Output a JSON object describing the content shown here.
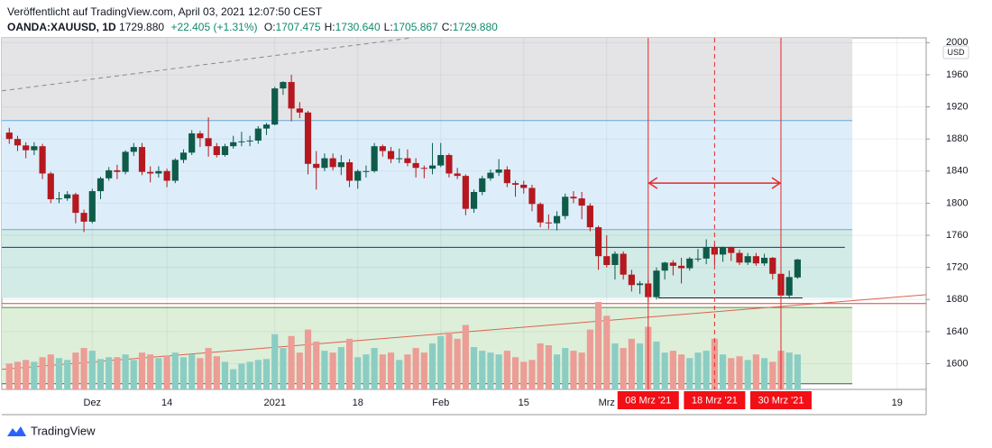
{
  "header": {
    "published": "Veröffentlicht auf TradingView.com, April 03, 2021 12:07:50 CEST",
    "symbol": "OANDA:XAUUSD, 1D",
    "last": "1729.880",
    "change": "+22.405 (+1.31%)",
    "ohlc": [
      {
        "label": "O:",
        "value": "1707.475"
      },
      {
        "label": "H:",
        "value": "1730.640"
      },
      {
        "label": "L:",
        "value": "1705.867"
      },
      {
        "label": "C:",
        "value": "1729.880"
      }
    ]
  },
  "footer": {
    "brand": "TradingView"
  },
  "chart_data": {
    "type": "candlestick",
    "currency": "USD",
    "ylim": [
      1568,
      2006
    ],
    "xlim": [
      -0.9,
      110.5
    ],
    "yticks": [
      1600,
      1640,
      1680,
      1720,
      1760,
      1800,
      1840,
      1880,
      1920,
      1960,
      2000
    ],
    "xlabels": [
      {
        "index": 10,
        "label": "Dez"
      },
      {
        "index": 19,
        "label": "14"
      },
      {
        "index": 32,
        "label": "2021"
      },
      {
        "index": 42,
        "label": "18"
      },
      {
        "index": 52,
        "label": "Feb"
      },
      {
        "index": 62,
        "label": "15"
      },
      {
        "index": 72,
        "label": "Mrz"
      },
      {
        "index": 107,
        "label": "19"
      }
    ],
    "grid": true,
    "up_color": "#0f5b4a",
    "down_color": "#b5181e",
    "volume_up_color": "#8ccdc3",
    "volume_down_color": "#ec9d96",
    "candles": [
      [
        1888,
        1894,
        1874,
        1880
      ],
      [
        1880,
        1884,
        1865,
        1872
      ],
      [
        1872,
        1876,
        1856,
        1866
      ],
      [
        1866,
        1876,
        1860,
        1871
      ],
      [
        1871,
        1874,
        1830,
        1837
      ],
      [
        1837,
        1839,
        1800,
        1805
      ],
      [
        1805,
        1814,
        1800,
        1806
      ],
      [
        1806,
        1815,
        1803,
        1811
      ],
      [
        1811,
        1813,
        1775,
        1788
      ],
      [
        1788,
        1792,
        1764,
        1777
      ],
      [
        1777,
        1818,
        1775,
        1815
      ],
      [
        1815,
        1833,
        1805,
        1831
      ],
      [
        1831,
        1845,
        1828,
        1841
      ],
      [
        1841,
        1848,
        1830,
        1839
      ],
      [
        1839,
        1866,
        1836,
        1864
      ],
      [
        1864,
        1875,
        1859,
        1870
      ],
      [
        1870,
        1875,
        1835,
        1839
      ],
      [
        1839,
        1846,
        1826,
        1837
      ],
      [
        1837,
        1846,
        1832,
        1840
      ],
      [
        1840,
        1843,
        1820,
        1828
      ],
      [
        1828,
        1856,
        1825,
        1854
      ],
      [
        1854,
        1867,
        1850,
        1863
      ],
      [
        1863,
        1891,
        1860,
        1887
      ],
      [
        1887,
        1890,
        1870,
        1881
      ],
      [
        1881,
        1907,
        1858,
        1871
      ],
      [
        1871,
        1875,
        1857,
        1860
      ],
      [
        1860,
        1874,
        1858,
        1871
      ],
      [
        1871,
        1884,
        1868,
        1876
      ],
      [
        1876,
        1889,
        1871,
        1877
      ],
      [
        1877,
        1884,
        1871,
        1878
      ],
      [
        1878,
        1896,
        1874,
        1893
      ],
      [
        1893,
        1900,
        1885,
        1898
      ],
      [
        1898,
        1945,
        1897,
        1943
      ],
      [
        1943,
        1952,
        1935,
        1951
      ],
      [
        1951,
        1960,
        1902,
        1918
      ],
      [
        1918,
        1926,
        1906,
        1913
      ],
      [
        1913,
        1915,
        1836,
        1849
      ],
      [
        1849,
        1865,
        1817,
        1844
      ],
      [
        1844,
        1862,
        1840,
        1856
      ],
      [
        1856,
        1862,
        1841,
        1845
      ],
      [
        1845,
        1860,
        1835,
        1851
      ],
      [
        1851,
        1855,
        1820,
        1828
      ],
      [
        1828,
        1842,
        1818,
        1840
      ],
      [
        1840,
        1847,
        1832,
        1840
      ],
      [
        1840,
        1875,
        1838,
        1871
      ],
      [
        1871,
        1873,
        1858,
        1865
      ],
      [
        1865,
        1870,
        1850,
        1855
      ],
      [
        1855,
        1868,
        1850,
        1856
      ],
      [
        1856,
        1867,
        1846,
        1850
      ],
      [
        1850,
        1856,
        1832,
        1844
      ],
      [
        1844,
        1847,
        1831,
        1843
      ],
      [
        1843,
        1875,
        1836,
        1847
      ],
      [
        1847,
        1875,
        1845,
        1860
      ],
      [
        1860,
        1862,
        1832,
        1837
      ],
      [
        1837,
        1844,
        1830,
        1834
      ],
      [
        1834,
        1836,
        1785,
        1793
      ],
      [
        1793,
        1817,
        1788,
        1814
      ],
      [
        1814,
        1834,
        1810,
        1831
      ],
      [
        1831,
        1842,
        1828,
        1838
      ],
      [
        1838,
        1855,
        1834,
        1842
      ],
      [
        1842,
        1846,
        1820,
        1825
      ],
      [
        1825,
        1828,
        1808,
        1823
      ],
      [
        1823,
        1828,
        1812,
        1819
      ],
      [
        1819,
        1823,
        1790,
        1799
      ],
      [
        1799,
        1801,
        1770,
        1776
      ],
      [
        1776,
        1786,
        1768,
        1775
      ],
      [
        1775,
        1790,
        1766,
        1784
      ],
      [
        1784,
        1812,
        1780,
        1808
      ],
      [
        1808,
        1815,
        1800,
        1806
      ],
      [
        1806,
        1814,
        1780,
        1797
      ],
      [
        1797,
        1800,
        1765,
        1770
      ],
      [
        1770,
        1772,
        1717,
        1734
      ],
      [
        1734,
        1760,
        1720,
        1723
      ],
      [
        1723,
        1740,
        1705,
        1737
      ],
      [
        1737,
        1740,
        1705,
        1711
      ],
      [
        1711,
        1717,
        1690,
        1698
      ],
      [
        1698,
        1703,
        1687,
        1700
      ],
      [
        1700,
        1705,
        1677,
        1683
      ],
      [
        1683,
        1720,
        1680,
        1716
      ],
      [
        1716,
        1727,
        1705,
        1726
      ],
      [
        1726,
        1729,
        1710,
        1722
      ],
      [
        1722,
        1732,
        1700,
        1719
      ],
      [
        1719,
        1733,
        1716,
        1731
      ],
      [
        1731,
        1743,
        1727,
        1731
      ],
      [
        1731,
        1755,
        1724,
        1745
      ],
      [
        1745,
        1749,
        1723,
        1736
      ],
      [
        1736,
        1746,
        1727,
        1745
      ],
      [
        1745,
        1746,
        1728,
        1738
      ],
      [
        1738,
        1742,
        1723,
        1726
      ],
      [
        1726,
        1738,
        1723,
        1734
      ],
      [
        1734,
        1738,
        1722,
        1725
      ],
      [
        1725,
        1737,
        1722,
        1732
      ],
      [
        1732,
        1733,
        1705,
        1712
      ],
      [
        1712,
        1714,
        1677,
        1685
      ],
      [
        1685,
        1716,
        1681,
        1708
      ],
      [
        1707.475,
        1730.64,
        1705.867,
        1729.88
      ]
    ],
    "volumes": [
      28,
      30,
      32,
      30,
      35,
      38,
      34,
      32,
      40,
      45,
      42,
      33,
      35,
      35,
      38,
      32,
      40,
      38,
      34,
      37,
      40,
      35,
      38,
      34,
      45,
      36,
      30,
      22,
      28,
      30,
      32,
      33,
      60,
      45,
      58,
      40,
      65,
      52,
      42,
      40,
      46,
      55,
      35,
      38,
      45,
      38,
      40,
      32,
      38,
      45,
      40,
      50,
      58,
      62,
      55,
      70,
      46,
      42,
      40,
      38,
      42,
      35,
      30,
      32,
      50,
      48,
      38,
      45,
      42,
      40,
      65,
      95,
      80,
      50,
      45,
      55,
      50,
      68,
      52,
      40,
      42,
      38,
      34,
      40,
      42,
      55,
      38,
      34,
      36,
      32,
      38,
      34,
      30,
      42,
      40,
      38
    ],
    "zones": [
      {
        "from": 1903,
        "to": 2006,
        "x_end": 101.6,
        "color": "#e4e4e6"
      },
      {
        "from": 1767,
        "to": 1903,
        "x_end": 101.6,
        "color": "#ddeefa"
      },
      {
        "from": 1682,
        "to": 1767,
        "x_end": 101.6,
        "color": "#d2ebe6"
      },
      {
        "from": 1575,
        "to": 1670,
        "x_end": 101.6,
        "color": "#ddefd9"
      }
    ],
    "levels": [
      {
        "value": 1903,
        "x": [
          -0.9,
          101.6
        ],
        "color": "#6aa9d6"
      },
      {
        "value": 1767,
        "x": [
          -0.9,
          101.6
        ],
        "color": "#6aa9d6"
      },
      {
        "value": 1745,
        "x": [
          -0.9,
          100.7
        ],
        "color": "#1a2f8f"
      },
      {
        "value": 1682,
        "x": [
          78.2,
          95.6
        ],
        "color": "#222222"
      },
      {
        "value": 1675,
        "x": [
          -0.9,
          110.5
        ],
        "color": "#e0433b"
      },
      {
        "value": 1670,
        "x": [
          -0.9,
          101.6
        ],
        "color": "#4e8f3e"
      },
      {
        "value": 1575,
        "x": [
          -0.9,
          101.6
        ],
        "color": "#555555"
      }
    ],
    "trendlines": [
      {
        "points": [
          [
            -0.9,
            1940
          ],
          [
            48.5,
            2006
          ]
        ],
        "color": "#888888",
        "dashed": true
      },
      {
        "points": [
          [
            -0.9,
            1593
          ],
          [
            110.5,
            1686
          ]
        ],
        "color": "#e0604f",
        "dashed": false
      }
    ],
    "events": [
      {
        "index": 77,
        "label": "08 Mrz '21",
        "dashed": false
      },
      {
        "index": 85,
        "label": "18 Mrz '21",
        "dashed": true
      },
      {
        "index": 93,
        "label": "30 Mrz '21",
        "dashed": false
      }
    ],
    "range_arrow": {
      "from": 77,
      "to": 93,
      "price": 1825
    }
  }
}
